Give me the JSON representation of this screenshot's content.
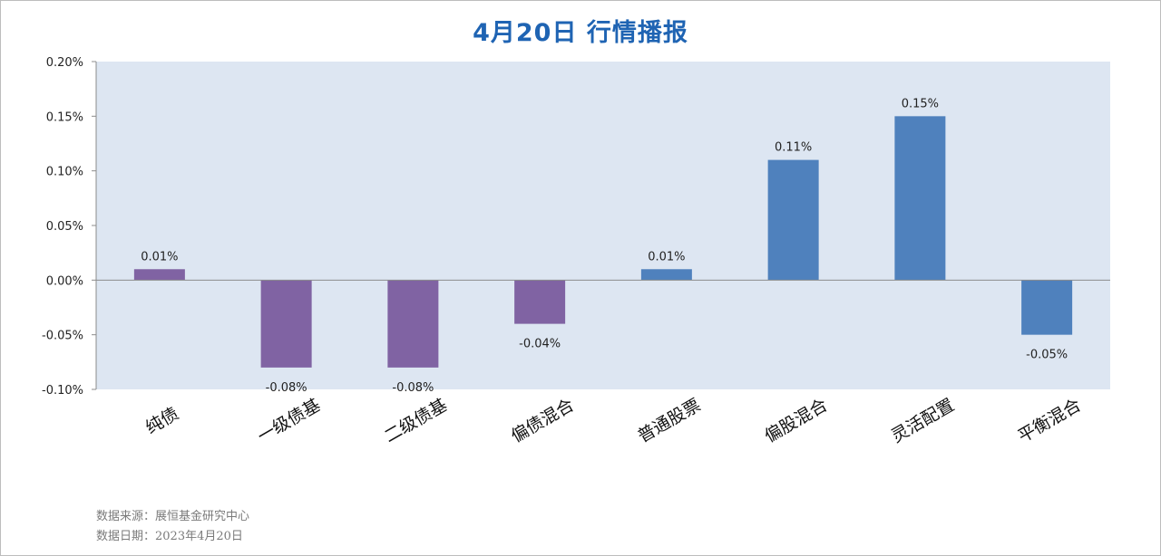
{
  "colors": {
    "plot_bg": "#dde6f2",
    "bond_bar": "#8063a3",
    "equity_bar": "#4f81bd",
    "title": "#1f64b3"
  },
  "chart_data": {
    "type": "bar",
    "title": "4月20日  行情播报",
    "categories": [
      "纯债",
      "一级债基",
      "二级债基",
      "偏债混合",
      "普通股票",
      "偏股混合",
      "灵活配置",
      "平衡混合"
    ],
    "values": [
      0.01,
      -0.08,
      -0.08,
      -0.04,
      0.01,
      0.11,
      0.15,
      -0.05
    ],
    "data_labels": [
      "0.01%",
      "-0.08%",
      "-0.08%",
      "-0.04%",
      "0.01%",
      "0.11%",
      "0.15%",
      "-0.05%"
    ],
    "bar_colors": [
      "#8063a3",
      "#8063a3",
      "#8063a3",
      "#8063a3",
      "#4f81bd",
      "#4f81bd",
      "#4f81bd",
      "#4f81bd"
    ],
    "yticks": [
      0.2,
      0.15,
      0.1,
      0.05,
      0,
      -0.05,
      -0.1
    ],
    "ytick_labels": [
      "0.20%",
      "0.15%",
      "0.10%",
      "0.05%",
      "0.00%",
      "-0.05%",
      "-0.10%"
    ],
    "ylim": [
      -0.1,
      0.2
    ],
    "xlabel": "",
    "ylabel": "",
    "grid": false
  },
  "footer": {
    "source": "数据来源：展恒基金研究中心",
    "date": "数据日期：2023年4月20日"
  }
}
